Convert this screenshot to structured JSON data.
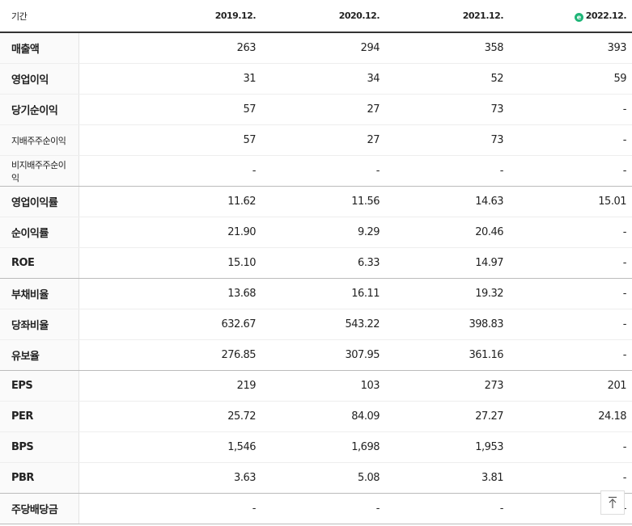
{
  "table": {
    "header": [
      "기간",
      "2019.12.",
      "2020.12.",
      "2021.12.",
      "2022.12."
    ],
    "groups": [
      [
        [
          "매출액",
          "263",
          "294",
          "358",
          "393"
        ],
        [
          "영업이익",
          "31",
          "34",
          "52",
          "59"
        ],
        [
          "당기순이익",
          "57",
          "27",
          "73",
          "-"
        ],
        [
          "지배주주순이익",
          "57",
          "27",
          "73",
          "-"
        ],
        [
          "비지배주주순이익",
          "-",
          "-",
          "-",
          "-"
        ]
      ],
      [
        [
          "영업이익률",
          "11.62",
          "11.56",
          "14.63",
          "15.01"
        ],
        [
          "순이익률",
          "21.90",
          "9.29",
          "20.46",
          "-"
        ],
        [
          "ROE",
          "15.10",
          "6.33",
          "14.97",
          "-"
        ]
      ],
      [
        [
          "부채비율",
          "13.68",
          "16.11",
          "19.32",
          "-"
        ],
        [
          "당좌비율",
          "632.67",
          "543.22",
          "398.83",
          "-"
        ],
        [
          "유보율",
          "276.85",
          "307.95",
          "361.16",
          "-"
        ]
      ],
      [
        [
          "EPS",
          "219",
          "103",
          "273",
          "201"
        ],
        [
          "PER",
          "25.72",
          "84.09",
          "27.27",
          "24.18"
        ],
        [
          "BPS",
          "1,546",
          "1,698",
          "1,953",
          "-"
        ],
        [
          "PBR",
          "3.63",
          "5.08",
          "3.81",
          "-"
        ]
      ],
      [
        [
          "주당배당금",
          "-",
          "-",
          "-",
          "-"
        ]
      ]
    ]
  }
}
